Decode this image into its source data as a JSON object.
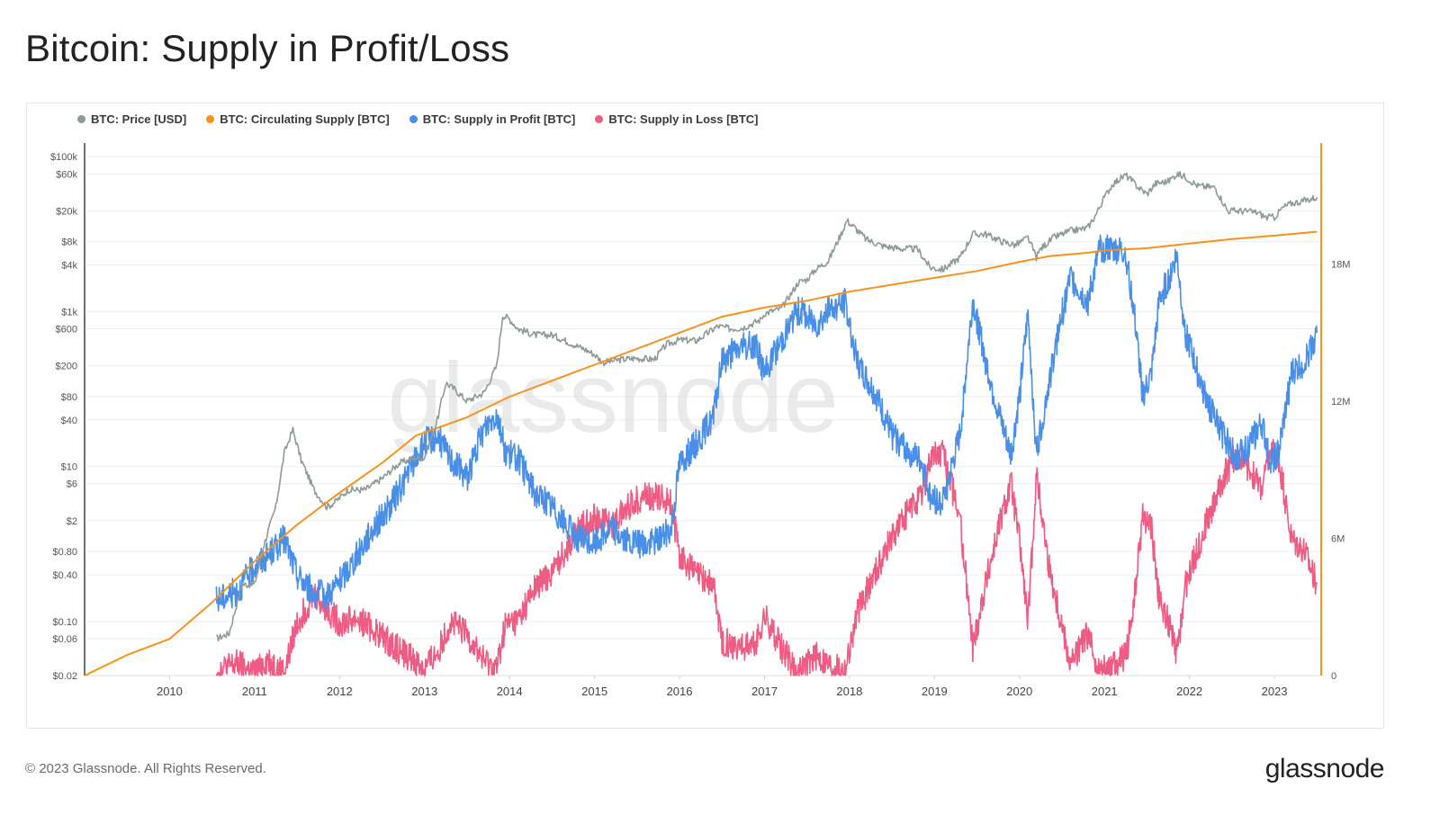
{
  "page": {
    "title": "Bitcoin: Supply in Profit/Loss",
    "copyright": "© 2023 Glassnode. All Rights Reserved.",
    "logo_text": "glassnode",
    "watermark": "glassnode"
  },
  "chart_data": {
    "type": "line",
    "legend_position": "top-left",
    "grid": true,
    "x_ticks": [
      "2010",
      "2011",
      "2012",
      "2013",
      "2014",
      "2015",
      "2016",
      "2017",
      "2018",
      "2019",
      "2020",
      "2021",
      "2022",
      "2023"
    ],
    "x_range": [
      2009.0,
      2023.55
    ],
    "left_axis": {
      "scale": "log",
      "range_usd": [
        0.02,
        150000
      ],
      "tick_labels": [
        "$100k",
        "$60k",
        "$20k",
        "$8k",
        "$4k",
        "$1k",
        "$600",
        "$200",
        "$80",
        "$40",
        "$10",
        "$6",
        "$2",
        "$0.80",
        "$0.40",
        "$0.10",
        "$0.06",
        "$0.02"
      ],
      "tick_values": [
        100000,
        60000,
        20000,
        8000,
        4000,
        1000,
        600,
        200,
        80,
        40,
        10,
        6,
        2,
        0.8,
        0.4,
        0.1,
        0.06,
        0.02
      ]
    },
    "right_axis": {
      "scale": "linear",
      "range_btc": [
        0,
        23300000
      ],
      "tick_labels": [
        "18M",
        "12M",
        "6M",
        "0"
      ],
      "tick_values": [
        18000000,
        12000000,
        6000000,
        0
      ]
    },
    "series": [
      {
        "name": "BTC: Price [USD]",
        "color": "#8c9a9a",
        "axis": "left",
        "x": [
          2010.55,
          2010.7,
          2010.85,
          2011.0,
          2011.1,
          2011.25,
          2011.35,
          2011.45,
          2011.55,
          2011.7,
          2011.85,
          2011.95,
          2012.1,
          2012.3,
          2012.5,
          2012.7,
          2012.9,
          2013.0,
          2013.15,
          2013.25,
          2013.35,
          2013.5,
          2013.7,
          2013.85,
          2013.92,
          2014.0,
          2014.1,
          2014.3,
          2014.5,
          2014.7,
          2014.9,
          2015.0,
          2015.1,
          2015.3,
          2015.5,
          2015.7,
          2015.85,
          2016.0,
          2016.2,
          2016.45,
          2016.6,
          2016.75,
          2016.95,
          2017.0,
          2017.2,
          2017.4,
          2017.5,
          2017.6,
          2017.75,
          2017.9,
          2017.97,
          2018.1,
          2018.2,
          2018.4,
          2018.6,
          2018.8,
          2018.95,
          2019.1,
          2019.3,
          2019.45,
          2019.6,
          2019.8,
          2019.95,
          2020.1,
          2020.2,
          2020.25,
          2020.4,
          2020.6,
          2020.8,
          2020.9,
          2021.0,
          2021.1,
          2021.25,
          2021.4,
          2021.5,
          2021.6,
          2021.75,
          2021.85,
          2021.95,
          2022.1,
          2022.3,
          2022.45,
          2022.6,
          2022.8,
          2022.9,
          2023.0,
          2023.1,
          2023.2,
          2023.35,
          2023.5
        ],
        "values": [
          0.06,
          0.07,
          0.3,
          0.3,
          0.9,
          3,
          15,
          30,
          12,
          5,
          3,
          3.5,
          5,
          5,
          7,
          11,
          13,
          13,
          40,
          120,
          100,
          70,
          90,
          200,
          900,
          800,
          600,
          500,
          500,
          400,
          320,
          280,
          220,
          240,
          250,
          240,
          380,
          430,
          420,
          650,
          600,
          620,
          780,
          950,
          1100,
          2400,
          2600,
          3500,
          4500,
          10000,
          15000,
          11000,
          8500,
          7000,
          6500,
          6400,
          3700,
          3500,
          5000,
          10000,
          10000,
          8000,
          7200,
          9000,
          5000,
          6500,
          9000,
          11000,
          12000,
          18000,
          30000,
          45000,
          58000,
          40000,
          33000,
          45000,
          48000,
          60000,
          55000,
          42000,
          40000,
          20000,
          20000,
          19000,
          16500,
          16500,
          22000,
          25000,
          27000,
          30000
        ]
      },
      {
        "name": "BTC: Circulating Supply [BTC]",
        "color": "#f7931a",
        "axis": "right",
        "x": [
          2009.0,
          2009.5,
          2010.0,
          2010.5,
          2011.0,
          2011.5,
          2012.0,
          2012.5,
          2012.9,
          2013.5,
          2014.0,
          2014.5,
          2015.0,
          2015.5,
          2016.0,
          2016.5,
          2017.0,
          2017.5,
          2018.0,
          2018.5,
          2019.0,
          2019.5,
          2020.0,
          2020.35,
          2020.8,
          2021.0,
          2021.5,
          2022.0,
          2022.5,
          2023.0,
          2023.5
        ],
        "values": [
          0,
          900000,
          1600000,
          3200000,
          5000000,
          6600000,
          8000000,
          9300000,
          10500000,
          11300000,
          12200000,
          12900000,
          13600000,
          14300000,
          15000000,
          15700000,
          16100000,
          16400000,
          16800000,
          17100000,
          17400000,
          17700000,
          18100000,
          18350000,
          18500000,
          18600000,
          18700000,
          18900000,
          19100000,
          19250000,
          19420000
        ]
      },
      {
        "name": "BTC: Supply in Profit [BTC]",
        "color": "#4a8fe7",
        "axis": "right",
        "x": [
          2010.55,
          2010.8,
          2011.0,
          2011.15,
          2011.35,
          2011.5,
          2011.7,
          2011.85,
          2012.0,
          2012.2,
          2012.4,
          2012.6,
          2012.8,
          2013.0,
          2013.15,
          2013.3,
          2013.5,
          2013.7,
          2013.85,
          2013.95,
          2014.1,
          2014.3,
          2014.5,
          2014.7,
          2014.85,
          2015.0,
          2015.2,
          2015.4,
          2015.6,
          2015.75,
          2015.9,
          2016.0,
          2016.2,
          2016.4,
          2016.5,
          2016.7,
          2016.9,
          2017.0,
          2017.2,
          2017.4,
          2017.6,
          2017.8,
          2017.95,
          2018.1,
          2018.3,
          2018.5,
          2018.7,
          2018.85,
          2018.95,
          2019.1,
          2019.3,
          2019.45,
          2019.6,
          2019.75,
          2019.9,
          2020.0,
          2020.1,
          2020.2,
          2020.35,
          2020.5,
          2020.6,
          2020.8,
          2020.95,
          2021.1,
          2021.25,
          2021.35,
          2021.45,
          2021.55,
          2021.65,
          2021.75,
          2021.85,
          2021.95,
          2022.1,
          2022.25,
          2022.4,
          2022.55,
          2022.7,
          2022.85,
          2022.95,
          2023.05,
          2023.2,
          2023.35,
          2023.5
        ],
        "values": [
          3300000,
          3700000,
          4800000,
          5200000,
          6000000,
          4400000,
          3600000,
          3500000,
          4100000,
          5200000,
          6500000,
          7400000,
          8800000,
          10200000,
          10500000,
          9500000,
          8700000,
          10800000,
          11500000,
          9800000,
          9500000,
          8000000,
          7400000,
          6400000,
          5900000,
          5800000,
          6500000,
          5800000,
          5700000,
          6000000,
          6400000,
          9300000,
          10200000,
          11300000,
          13800000,
          14300000,
          14500000,
          13200000,
          14700000,
          16000000,
          15400000,
          16100000,
          16300000,
          13600000,
          12300000,
          10500000,
          9800000,
          9300000,
          7800000,
          7600000,
          10500000,
          16400000,
          13800000,
          11500000,
          9600000,
          12200000,
          15800000,
          9700000,
          12900000,
          15800000,
          17400000,
          16300000,
          18700000,
          18600000,
          18500000,
          15800000,
          12200000,
          13100000,
          16500000,
          17300000,
          18400000,
          15000000,
          13200000,
          11600000,
          10500000,
          9500000,
          10100000,
          11000000,
          9400000,
          9700000,
          13200000,
          13700000,
          15000000
        ]
      },
      {
        "name": "BTC: Supply in Loss [BTC]",
        "color": "#ee5c84",
        "axis": "right",
        "x": [
          2010.55,
          2010.8,
          2011.0,
          2011.15,
          2011.35,
          2011.5,
          2011.7,
          2011.85,
          2012.0,
          2012.2,
          2012.4,
          2012.6,
          2012.8,
          2013.0,
          2013.15,
          2013.3,
          2013.5,
          2013.7,
          2013.85,
          2013.95,
          2014.1,
          2014.3,
          2014.5,
          2014.7,
          2014.85,
          2015.0,
          2015.2,
          2015.4,
          2015.6,
          2015.75,
          2015.9,
          2016.0,
          2016.2,
          2016.4,
          2016.5,
          2016.7,
          2016.9,
          2017.0,
          2017.2,
          2017.4,
          2017.6,
          2017.8,
          2017.95,
          2018.1,
          2018.3,
          2018.5,
          2018.7,
          2018.85,
          2018.95,
          2019.1,
          2019.3,
          2019.45,
          2019.6,
          2019.75,
          2019.9,
          2020.0,
          2020.1,
          2020.2,
          2020.35,
          2020.5,
          2020.6,
          2020.8,
          2020.95,
          2021.1,
          2021.25,
          2021.35,
          2021.45,
          2021.55,
          2021.65,
          2021.75,
          2021.85,
          2021.95,
          2022.1,
          2022.25,
          2022.4,
          2022.55,
          2022.7,
          2022.85,
          2022.95,
          2023.05,
          2023.2,
          2023.35,
          2023.5
        ],
        "values": [
          200000,
          500000,
          100000,
          700000,
          100000,
          2300000,
          3600000,
          2900000,
          2300000,
          2500000,
          2000000,
          1400000,
          900000,
          300000,
          1000000,
          2300000,
          1800000,
          600000,
          300000,
          2200000,
          2400000,
          3800000,
          4500000,
          5700000,
          6500000,
          7000000,
          6600000,
          7400000,
          7900000,
          7800000,
          7600000,
          5200000,
          4400000,
          3900000,
          1500000,
          1300000,
          1300000,
          2600000,
          1200000,
          100000,
          900000,
          400000,
          300000,
          2800000,
          4500000,
          6100000,
          7200000,
          7800000,
          9500000,
          9700000,
          6900000,
          1200000,
          4000000,
          6400000,
          8400000,
          5900000,
          2300000,
          8800000,
          4700000,
          2200000,
          500000,
          1800000,
          100000,
          500000,
          800000,
          3200000,
          7000000,
          6500000,
          3100000,
          2400000,
          800000,
          3900000,
          5600000,
          7200000,
          8700000,
          9700000,
          9100000,
          8200000,
          9800000,
          9500000,
          6000000,
          5500000,
          4000000
        ]
      }
    ]
  }
}
